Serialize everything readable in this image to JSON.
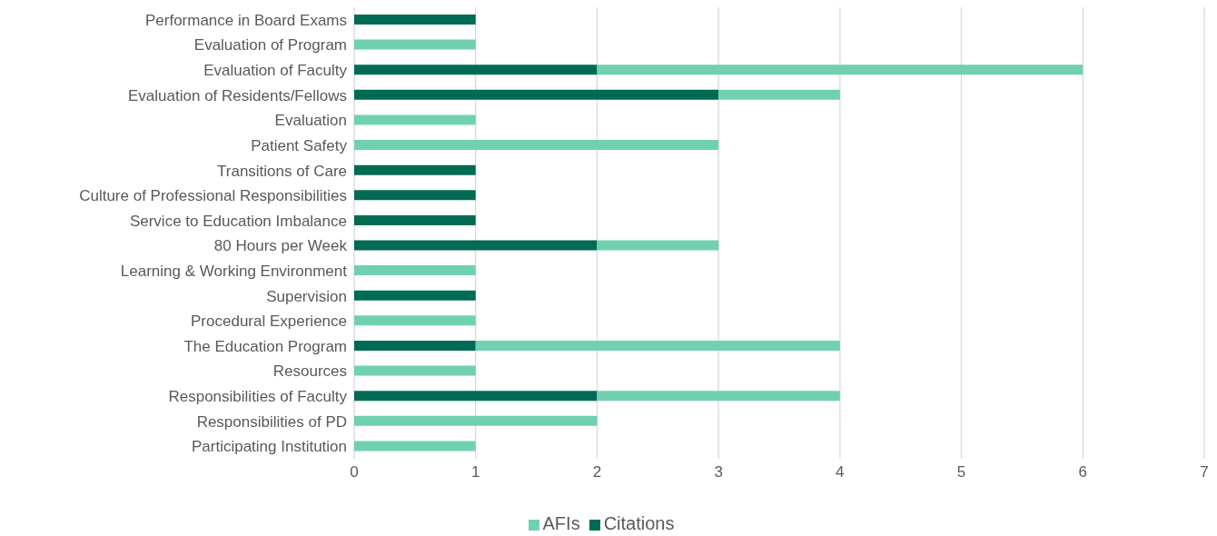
{
  "chart_data": {
    "type": "bar",
    "orientation": "horizontal",
    "stacked": true,
    "categories": [
      "Performance in Board Exams",
      "Evaluation of Program",
      "Evaluation of Faculty",
      "Evaluation of Residents/Fellows",
      "Evaluation",
      "Patient Safety",
      "Transitions of Care",
      "Culture of Professional Responsibilities",
      "Service to Education Imbalance",
      "80 Hours per Week",
      "Learning & Working Environment",
      "Supervision",
      "Procedural Experience",
      "The Education Program",
      "Resources",
      "Responsibilities of Faculty",
      "Responsibilities of PD",
      "Participating Institution"
    ],
    "series": [
      {
        "name": "Citations",
        "color": "#006b54",
        "values": [
          1,
          0,
          2,
          3,
          0,
          0,
          1,
          1,
          1,
          2,
          0,
          1,
          0,
          1,
          0,
          2,
          0,
          0
        ]
      },
      {
        "name": "AFIs",
        "color": "#6fd1b0",
        "values": [
          0,
          1,
          4,
          1,
          1,
          3,
          0,
          0,
          0,
          1,
          1,
          0,
          1,
          3,
          1,
          2,
          2,
          1
        ]
      }
    ],
    "xlim": [
      0,
      7
    ],
    "xticks": [
      0,
      1,
      2,
      3,
      4,
      5,
      6,
      7
    ],
    "grid": "x",
    "legend": "bottom"
  }
}
